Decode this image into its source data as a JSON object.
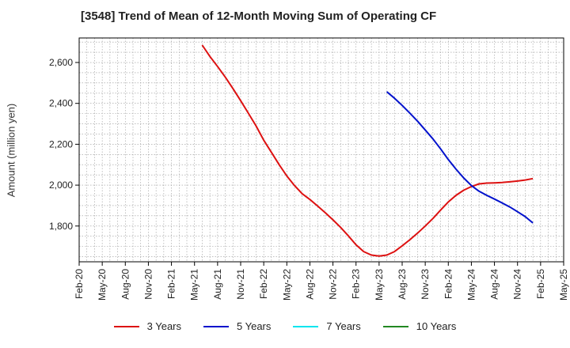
{
  "chart_data": {
    "type": "line",
    "title": "[3548]  Trend of Mean of 12-Month Moving Sum of Operating CF",
    "xlabel": "",
    "ylabel": "Amount (million yen)",
    "ylim": [
      1625,
      2720
    ],
    "yticks": [
      1800,
      2000,
      2200,
      2400,
      2600
    ],
    "ytick_labels": [
      "1,800",
      "2,000",
      "2,200",
      "2,400",
      "2,600"
    ],
    "xtick_labels": [
      "Feb-20",
      "May-20",
      "Aug-20",
      "Nov-20",
      "Feb-21",
      "May-21",
      "Aug-21",
      "Nov-21",
      "Feb-22",
      "May-22",
      "Aug-22",
      "Nov-22",
      "Feb-23",
      "May-23",
      "Aug-23",
      "Nov-23",
      "Feb-24",
      "May-24",
      "Aug-24",
      "Nov-24",
      "Feb-25",
      "May-25"
    ],
    "x_range_months": [
      0,
      63
    ],
    "grid": true,
    "legend_position": "bottom",
    "series": [
      {
        "name": "3 Years",
        "color": "#dd1111",
        "points": [
          [
            16,
            2685
          ],
          [
            17,
            2630
          ],
          [
            18,
            2580
          ],
          [
            19,
            2528
          ],
          [
            20,
            2472
          ],
          [
            21,
            2413
          ],
          [
            22,
            2352
          ],
          [
            23,
            2290
          ],
          [
            24,
            2220
          ],
          [
            25,
            2160
          ],
          [
            26,
            2100
          ],
          [
            27,
            2045
          ],
          [
            28,
            1998
          ],
          [
            29,
            1958
          ],
          [
            30,
            1930
          ],
          [
            31,
            1898
          ],
          [
            32,
            1865
          ],
          [
            33,
            1830
          ],
          [
            34,
            1793
          ],
          [
            35,
            1752
          ],
          [
            36,
            1708
          ],
          [
            37,
            1675
          ],
          [
            38,
            1658
          ],
          [
            39,
            1653
          ],
          [
            40,
            1658
          ],
          [
            41,
            1675
          ],
          [
            42,
            1703
          ],
          [
            43,
            1733
          ],
          [
            44,
            1765
          ],
          [
            45,
            1800
          ],
          [
            46,
            1837
          ],
          [
            47,
            1878
          ],
          [
            48,
            1918
          ],
          [
            49,
            1950
          ],
          [
            50,
            1975
          ],
          [
            51,
            1993
          ],
          [
            52,
            2006
          ],
          [
            53,
            2010
          ],
          [
            54,
            2011
          ],
          [
            55,
            2013
          ],
          [
            56,
            2016
          ],
          [
            57,
            2020
          ],
          [
            58,
            2025
          ],
          [
            59,
            2032
          ]
        ]
      },
      {
        "name": "5 Years",
        "color": "#0011cc",
        "points": [
          [
            40,
            2457
          ],
          [
            41,
            2425
          ],
          [
            42,
            2390
          ],
          [
            43,
            2352
          ],
          [
            44,
            2313
          ],
          [
            45,
            2270
          ],
          [
            46,
            2226
          ],
          [
            47,
            2177
          ],
          [
            48,
            2125
          ],
          [
            49,
            2078
          ],
          [
            50,
            2035
          ],
          [
            51,
            1998
          ],
          [
            52,
            1970
          ],
          [
            53,
            1950
          ],
          [
            54,
            1932
          ],
          [
            55,
            1913
          ],
          [
            56,
            1893
          ],
          [
            57,
            1870
          ],
          [
            58,
            1846
          ],
          [
            59,
            1815
          ]
        ]
      },
      {
        "name": "7 Years",
        "color": "#00e5ee",
        "points": []
      },
      {
        "name": "10 Years",
        "color": "#228822",
        "points": []
      }
    ]
  }
}
